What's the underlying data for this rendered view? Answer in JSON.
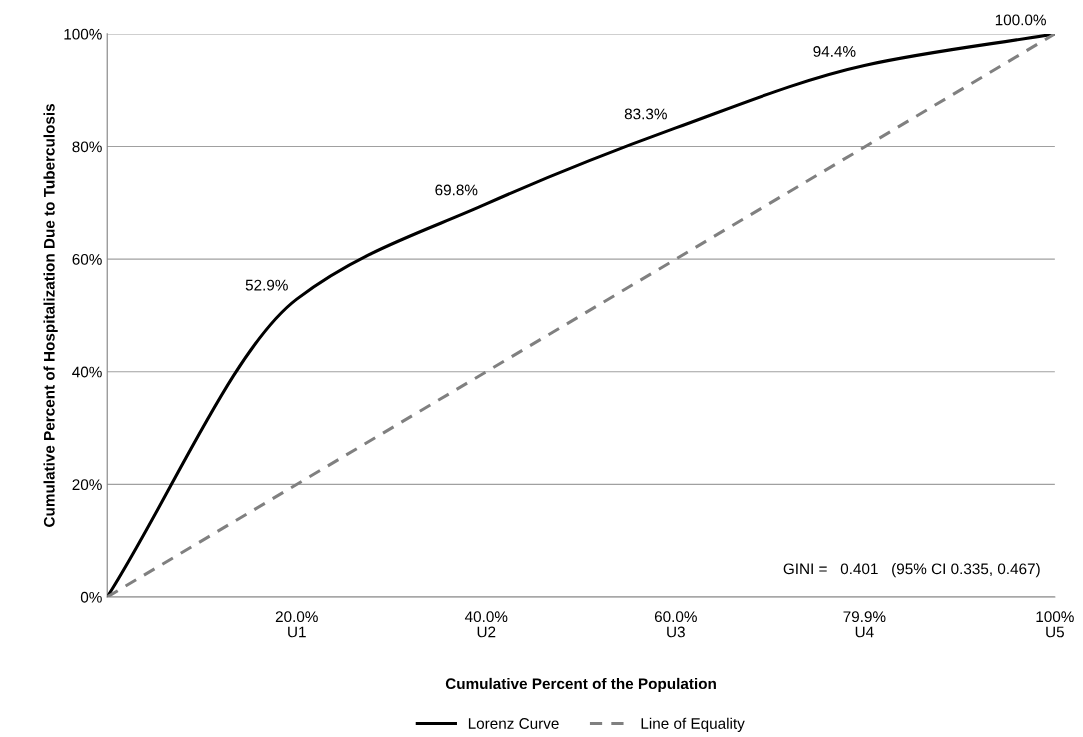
{
  "chart_data": {
    "type": "line",
    "xlabel": "Cumulative Percent of the Population",
    "ylabel": "Cumulative Percent of Hospitalization Due to Tuberculosis",
    "x": [
      0,
      20,
      40,
      60,
      79.9,
      100
    ],
    "series": [
      {
        "name": "Lorenz Curve",
        "color": "#000000",
        "values": [
          0,
          52.9,
          69.8,
          83.3,
          94.4,
          100
        ],
        "line_style": "solid",
        "value_labels": [
          null,
          "52.9%",
          "69.8%",
          "83.3%",
          "94.4%",
          "100.0%"
        ]
      },
      {
        "name": "Line of Equality",
        "color": "#808080",
        "x": [
          0,
          100
        ],
        "values": [
          0,
          100
        ],
        "line_style": "dashed"
      }
    ],
    "xlim": [
      0,
      100
    ],
    "xticks": [
      {
        "value": 20,
        "label": "20.0%"
      },
      {
        "value": 40,
        "label": "40.0%"
      },
      {
        "value": 60,
        "label": "60.0%"
      },
      {
        "value": 79.9,
        "label": "79.9%"
      },
      {
        "value": 100,
        "label": "100%"
      }
    ],
    "ylim": [
      0,
      100
    ],
    "yticks": [
      {
        "value": 0,
        "label": "0%"
      },
      {
        "value": 20,
        "label": "20%"
      },
      {
        "value": 40,
        "label": "40%"
      },
      {
        "value": 60,
        "label": "60%"
      },
      {
        "value": 80,
        "label": "80%"
      },
      {
        "value": 100,
        "label": "100%"
      }
    ],
    "grid": "y",
    "legend": "bottom",
    "marker": "none",
    "annotations": [
      "GINI =   0.401   (95% CI 0.335, 0.467)",
      "U1",
      "U2",
      "U3",
      "U4",
      "U5"
    ]
  }
}
